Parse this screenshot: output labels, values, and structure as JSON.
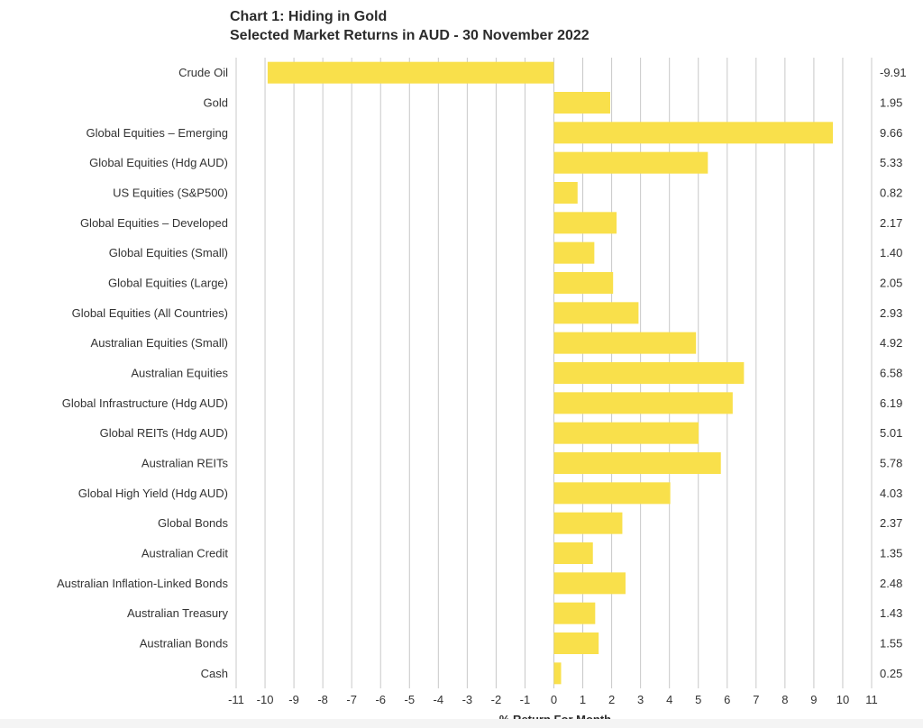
{
  "chart_data": {
    "type": "bar",
    "orientation": "horizontal",
    "title": "Chart 1: Hiding in Gold",
    "subtitle": "Selected Market Returns in AUD - 30 November 2022",
    "xlabel": "% Return For Month",
    "ylabel": "",
    "xlim": [
      -11,
      11
    ],
    "xticks": [
      "-11",
      "-10",
      "-9",
      "-8",
      "-7",
      "-6",
      "-5",
      "-4",
      "-3",
      "-2",
      "-1",
      "0",
      "1",
      "2",
      "3",
      "4",
      "5",
      "6",
      "7",
      "8",
      "9",
      "10",
      "11"
    ],
    "grid": true,
    "bar_color": "#f9e04b",
    "categories": [
      "Crude Oil",
      "Gold",
      "Global Equities – Emerging",
      "Global Equities (Hdg AUD)",
      "US Equities (S&P500)",
      "Global Equities – Developed",
      "Global Equities (Small)",
      "Global Equities (Large)",
      "Global Equities (All Countries)",
      "Australian Equities (Small)",
      "Australian Equities",
      "Global Infrastructure (Hdg AUD)",
      "Global REITs (Hdg AUD)",
      "Australian REITs",
      "Global High Yield (Hdg AUD)",
      "Global Bonds",
      "Australian Credit",
      "Australian Inflation-Linked Bonds",
      "Australian Treasury",
      "Australian Bonds",
      "Cash"
    ],
    "values": [
      -9.91,
      1.95,
      9.66,
      5.33,
      0.82,
      2.17,
      1.4,
      2.05,
      2.93,
      4.92,
      6.58,
      6.19,
      5.01,
      5.78,
      4.03,
      2.37,
      1.35,
      2.48,
      1.43,
      1.55,
      0.25
    ],
    "value_labels": [
      "-9.91",
      "1.95",
      "9.66",
      "5.33",
      "0.82",
      "2.17",
      "1.40",
      "2.05",
      "2.93",
      "4.92",
      "6.58",
      "6.19",
      "5.01",
      "5.78",
      "4.03",
      "2.37",
      "1.35",
      "2.48",
      "1.43",
      "1.55",
      "0.25"
    ]
  }
}
